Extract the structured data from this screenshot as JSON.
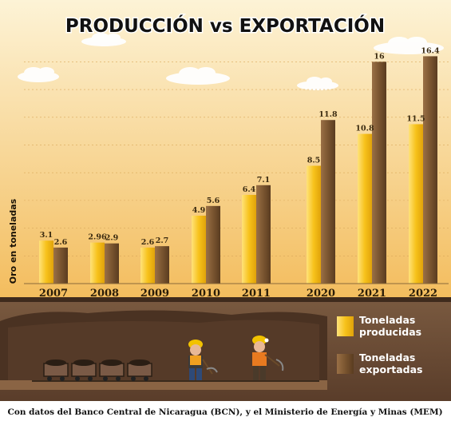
{
  "colors": {
    "produced": "#f7c21b",
    "exported": "#7a5530",
    "sky_top": "#fbe9b8",
    "sky_bottom": "#f3c169",
    "rock": "#6a4a35",
    "tunnel": "#4a3222",
    "ground": "#a07a52"
  },
  "chart_data": {
    "type": "bar",
    "title": "PRODUCCIÓN vs EXPORTACIÓN",
    "ylabel": "Oro en toneladas",
    "xlabel": "",
    "ylim": [
      0,
      17
    ],
    "grid": true,
    "legend_placement": "bottom-right",
    "categories": [
      "2007",
      "2008",
      "2009",
      "2010",
      "2011",
      "2020",
      "2021",
      "2022"
    ],
    "series": [
      {
        "name": "Toneladas producidas",
        "values": [
          3.1,
          2.96,
          2.6,
          4.9,
          6.4,
          8.5,
          10.8,
          11.5
        ],
        "labels": [
          "3.1",
          "2.96",
          "2.6",
          "4.9",
          "6.4",
          "8.5",
          "10.8",
          "11.5"
        ]
      },
      {
        "name": "Toneladas exportadas",
        "values": [
          2.6,
          2.9,
          2.7,
          5.6,
          7.1,
          11.8,
          16,
          16.4
        ],
        "labels": [
          "2.6",
          "2.9",
          "2.7",
          "5.6",
          "7.1",
          "11.8",
          "16",
          "16.4"
        ]
      }
    ],
    "legend": [
      {
        "line1": "Toneladas",
        "line2": "producidas"
      },
      {
        "line1": "Toneladas",
        "line2": "exportadas"
      }
    ],
    "source": "Con datos del Banco Central de Nicaragua (BCN), y el Ministerio de Energía y Minas (MEM)"
  }
}
